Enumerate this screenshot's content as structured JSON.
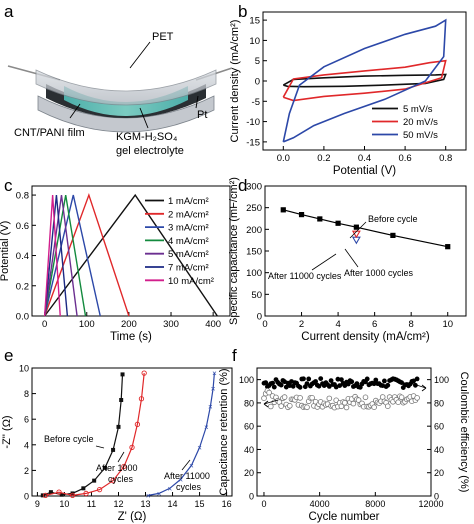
{
  "panel_letters": [
    "a",
    "b",
    "c",
    "d",
    "e",
    "f"
  ],
  "device": {
    "label_pet": "PET",
    "label_pt": "Pt",
    "label_film": "CNT/PANI film",
    "label_electrolyte_1": "KGM-H₂SO₄",
    "label_electrolyte_2": "gel electrolyte"
  },
  "colors": {
    "black": "#111111",
    "red": "#e0282a",
    "blue": "#2c48a8",
    "green": "#138a3e",
    "purple": "#6b2f90",
    "magenta": "#d21f8c",
    "navy": "#1c2a84",
    "teal": "#2fb8c4"
  },
  "chart_data": [
    {
      "panel": "b",
      "type": "line",
      "xlabel": "Potential (V)",
      "ylabel": "Current density (mA/cm²)",
      "xlim": [
        -0.1,
        0.9
      ],
      "ylim": [
        -17,
        17
      ],
      "xticks": [
        "0.0",
        "0.2",
        "0.4",
        "0.6",
        "0.8"
      ],
      "yticks": [
        "-15",
        "-10",
        "-5",
        "0",
        "5",
        "10",
        "15"
      ],
      "legend_position": "bottom-right",
      "series": [
        {
          "name": "5 mV/s",
          "color": "black",
          "points": [
            [
              0,
              -1
            ],
            [
              0.05,
              0.4
            ],
            [
              0.2,
              0.8
            ],
            [
              0.4,
              1.2
            ],
            [
              0.6,
              1.4
            ],
            [
              0.75,
              1.5
            ],
            [
              0.8,
              1.6
            ],
            [
              0.79,
              0.4
            ],
            [
              0.7,
              -0.6
            ],
            [
              0.5,
              -1.0
            ],
            [
              0.3,
              -1.3
            ],
            [
              0.1,
              -1.4
            ],
            [
              0.02,
              -1.3
            ],
            [
              0,
              -1
            ]
          ]
        },
        {
          "name": "20 mV/s",
          "color": "red",
          "points": [
            [
              0,
              -4
            ],
            [
              0.05,
              0.5
            ],
            [
              0.2,
              1.5
            ],
            [
              0.4,
              2.5
            ],
            [
              0.6,
              3.4
            ],
            [
              0.72,
              4.5
            ],
            [
              0.8,
              5
            ],
            [
              0.78,
              0.8
            ],
            [
              0.6,
              -2.0
            ],
            [
              0.4,
              -3.0
            ],
            [
              0.2,
              -3.8
            ],
            [
              0.05,
              -4.8
            ],
            [
              0,
              -4
            ]
          ]
        },
        {
          "name": "50 mV/s",
          "color": "blue",
          "points": [
            [
              0,
              -15
            ],
            [
              0.03,
              -8
            ],
            [
              0.08,
              -1
            ],
            [
              0.2,
              3.5
            ],
            [
              0.4,
              8
            ],
            [
              0.6,
              11.5
            ],
            [
              0.75,
              13.5
            ],
            [
              0.8,
              15
            ],
            [
              0.79,
              6
            ],
            [
              0.7,
              0
            ],
            [
              0.5,
              -4.5
            ],
            [
              0.3,
              -8
            ],
            [
              0.15,
              -11
            ],
            [
              0.05,
              -14
            ],
            [
              0,
              -15
            ]
          ]
        }
      ]
    },
    {
      "panel": "c",
      "type": "line",
      "xlabel": "Time (s)",
      "ylabel": "Potential (V)",
      "xlim": [
        -30,
        440
      ],
      "ylim": [
        0,
        0.86
      ],
      "xticks": [
        "0",
        "100",
        "200",
        "300",
        "400"
      ],
      "yticks": [
        "0.0",
        "0.2",
        "0.4",
        "0.6",
        "0.8"
      ],
      "legend_position": "right",
      "series": [
        {
          "name": "1 mA/cm²",
          "color": "black",
          "charge_end": 215,
          "discharge_end": 410
        },
        {
          "name": "2 mA/cm²",
          "color": "red",
          "charge_end": 105,
          "discharge_end": 200
        },
        {
          "name": "3 mA/cm²",
          "color": "blue",
          "charge_end": 68,
          "discharge_end": 132
        },
        {
          "name": "4 mA/cm²",
          "color": "green",
          "charge_end": 50,
          "discharge_end": 97
        },
        {
          "name": "5 mA/cm²",
          "color": "purple",
          "charge_end": 40,
          "discharge_end": 77
        },
        {
          "name": "7 mA/cm²",
          "color": "navy",
          "charge_end": 28,
          "discharge_end": 54
        },
        {
          "name": "10 mA/cm²",
          "color": "magenta",
          "charge_end": 19,
          "discharge_end": 37
        }
      ]
    },
    {
      "panel": "d",
      "type": "line",
      "xlabel": "Current density (mA/cm²)",
      "ylabel": "Specific capacitance (mF/cm²)",
      "xlim": [
        0,
        11
      ],
      "ylim": [
        0,
        300
      ],
      "xticks": [
        "0",
        "2",
        "4",
        "6",
        "8",
        "10"
      ],
      "yticks": [
        "0",
        "50",
        "100",
        "150",
        "200",
        "250",
        "300"
      ],
      "x": [
        1,
        2,
        3,
        4,
        5,
        7,
        10
      ],
      "values": [
        245,
        234,
        224,
        214,
        205,
        186,
        160
      ],
      "extra_points": [
        {
          "label": "After 11000 cycles",
          "x": 5,
          "y": 176,
          "color": "blue"
        },
        {
          "label": "After 1000 cycles",
          "x": 5,
          "y": 190,
          "color": "red"
        }
      ],
      "annotations": [
        "Before cycle",
        "After 11000 cycles",
        "After 1000 cycles"
      ]
    },
    {
      "panel": "e",
      "type": "scatter",
      "xlabel": "Z' (Ω)",
      "ylabel": "-Z'' (Ω)",
      "xlim": [
        8.8,
        16.2
      ],
      "ylim": [
        0,
        10
      ],
      "xticks": [
        "9",
        "10",
        "11",
        "12",
        "13",
        "14",
        "15",
        "16"
      ],
      "yticks": [
        "0",
        "2",
        "4",
        "6",
        "8",
        "10"
      ],
      "series": [
        {
          "name": "Before cycle",
          "color": "black",
          "x": [
            9.2,
            9.5,
            9.9,
            10.3,
            10.7,
            11.1,
            11.5,
            11.8,
            12.0,
            12.1,
            12.15
          ],
          "y": [
            0.05,
            0.3,
            0.1,
            0.2,
            0.6,
            1.2,
            2.2,
            3.6,
            5.4,
            7.5,
            9.5
          ]
        },
        {
          "name": "After 1000 cycles",
          "color": "red",
          "x": [
            9.3,
            9.8,
            10.3,
            10.8,
            11.3,
            11.8,
            12.2,
            12.5,
            12.7,
            12.85,
            12.95
          ],
          "y": [
            0.05,
            0.3,
            0.05,
            0.2,
            0.5,
            1.2,
            2.3,
            3.8,
            5.6,
            7.6,
            9.6
          ]
        },
        {
          "name": "After 11000 cycles",
          "color": "blue",
          "x": [
            13.1,
            13.5,
            13.9,
            14.3,
            14.7,
            15.0,
            15.25,
            15.4,
            15.5,
            15.55
          ],
          "y": [
            0.05,
            0.2,
            0.6,
            1.3,
            2.4,
            3.8,
            5.4,
            7.0,
            8.4,
            9.6
          ]
        }
      ],
      "annotations": [
        "Before cycle",
        "After 1000",
        "cycles",
        "After 11000",
        "cycles"
      ]
    },
    {
      "panel": "f",
      "type": "scatter",
      "xlabel": "Cycle number",
      "ylabel": "Capacitance retention (%)",
      "y2label": "Coulombic efficiency (%)",
      "xlim": [
        -500,
        12000
      ],
      "ylim": [
        0,
        110
      ],
      "xticks": [
        "0",
        "4000",
        "8000",
        "12000"
      ],
      "yticks": [
        "0",
        "20",
        "40",
        "60",
        "80",
        "100"
      ],
      "y2ticks": [
        "0",
        "20",
        "40",
        "60",
        "80",
        "100"
      ],
      "series": [
        {
          "name": "Coulombic efficiency",
          "color": "black",
          "filled": true,
          "band": [
            93,
            101
          ]
        },
        {
          "name": "Capacitance retention",
          "color": "#777777",
          "filled": false,
          "band": [
            76,
            86
          ]
        }
      ],
      "cycle_range": [
        0,
        11000
      ]
    }
  ]
}
